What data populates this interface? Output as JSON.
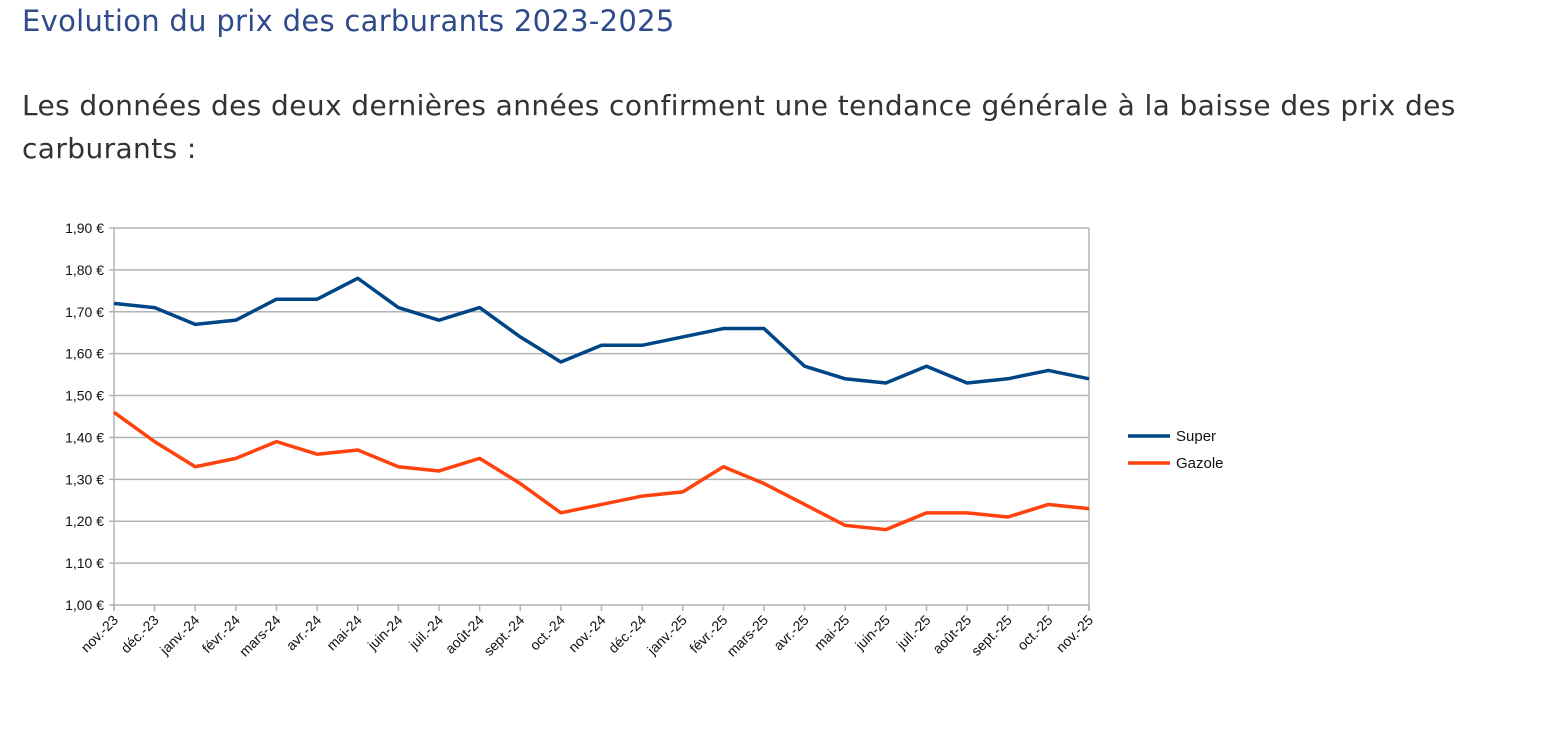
{
  "header": {
    "title": "Evolution du prix des carburants 2023-2025",
    "intro": "Les données des deux dernières années confirment une tendance générale à la baisse des prix des carburants :"
  },
  "chart_data": {
    "type": "line",
    "title": "",
    "xlabel": "",
    "ylabel": "",
    "ylim": [
      1.0,
      1.9
    ],
    "yticks": [
      "1,00 €",
      "1,10 €",
      "1,20 €",
      "1,30 €",
      "1,40 €",
      "1,50 €",
      "1,60 €",
      "1,70 €",
      "1,80 €",
      "1,90 €"
    ],
    "grid": true,
    "legend_position": "right",
    "categories": [
      "nov.-23",
      "déc.-23",
      "janv.-24",
      "févr.-24",
      "mars-24",
      "avr.-24",
      "mai-24",
      "juin-24",
      "juil.-24",
      "août-24",
      "sept.-24",
      "oct.-24",
      "nov.-24",
      "déc.-24",
      "janv.-25",
      "févr.-25",
      "mars-25",
      "avr.-25",
      "mai-25",
      "juin-25",
      "juil.-25",
      "août-25",
      "sept.-25",
      "oct.-25",
      "nov.-25"
    ],
    "series": [
      {
        "name": "Super",
        "color": "#004586",
        "values": [
          1.72,
          1.71,
          1.67,
          1.68,
          1.73,
          1.73,
          1.78,
          1.71,
          1.68,
          1.71,
          1.64,
          1.58,
          1.62,
          1.62,
          1.64,
          1.66,
          1.66,
          1.57,
          1.54,
          1.53,
          1.57,
          1.53,
          1.54,
          1.56,
          1.54
        ]
      },
      {
        "name": "Gazole",
        "color": "#ff420e",
        "values": [
          1.46,
          1.39,
          1.33,
          1.35,
          1.39,
          1.36,
          1.37,
          1.33,
          1.32,
          1.35,
          1.29,
          1.22,
          1.24,
          1.26,
          1.27,
          1.33,
          1.29,
          1.24,
          1.19,
          1.18,
          1.22,
          1.22,
          1.21,
          1.24,
          1.23
        ]
      }
    ]
  }
}
